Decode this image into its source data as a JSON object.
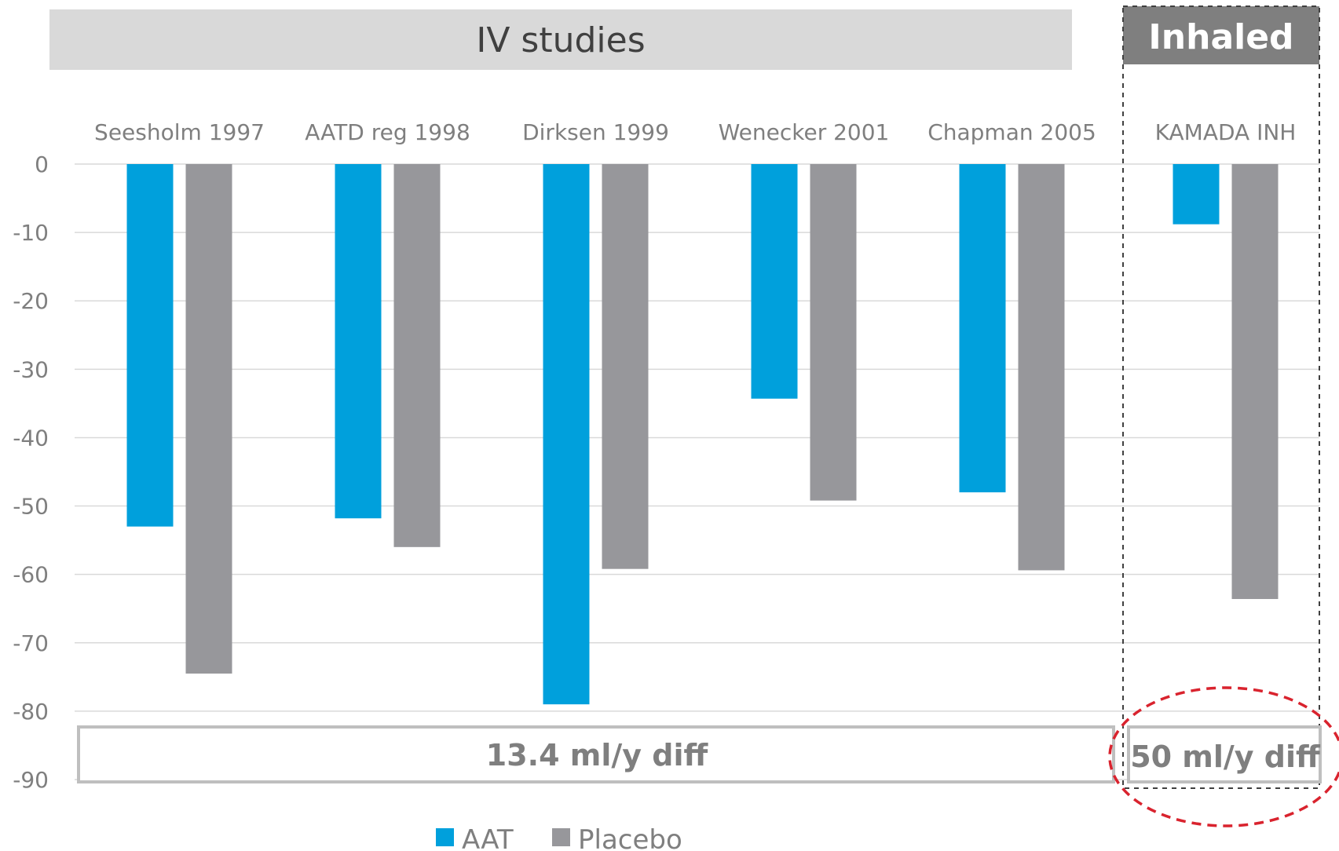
{
  "banners": {
    "iv": "IV studies",
    "inhaled": "Inhaled"
  },
  "diff_boxes": {
    "iv": "13.4 ml/y diff",
    "inhaled": "50 ml/y diff"
  },
  "colors": {
    "aat": "#00a0dc",
    "placebo": "#97979b",
    "banner_iv": "#d9d9d9",
    "banner_inhaled": "#7f7f7f",
    "circle": "#d9232e"
  },
  "chart_data": {
    "type": "bar",
    "title": "",
    "xlabel": "",
    "ylabel": "",
    "categories": [
      "Seesholm 1997",
      "AATD reg 1998",
      "Dirksen 1999",
      "Wenecker 2001",
      "Chapman 2005",
      "KAMADA INH"
    ],
    "series": [
      {
        "name": "AAT",
        "values": [
          -53,
          -51.8,
          -79,
          -34.3,
          -48,
          -8.8
        ]
      },
      {
        "name": "Placebo",
        "values": [
          -74.5,
          -56,
          -59.2,
          -49.2,
          -59.4,
          -63.6
        ]
      }
    ],
    "ylim": [
      -90,
      0
    ],
    "yticks": [
      0,
      -10,
      -20,
      -30,
      -40,
      -50,
      -60,
      -70,
      -80,
      -90
    ],
    "grid": true,
    "legend": "bottom"
  }
}
